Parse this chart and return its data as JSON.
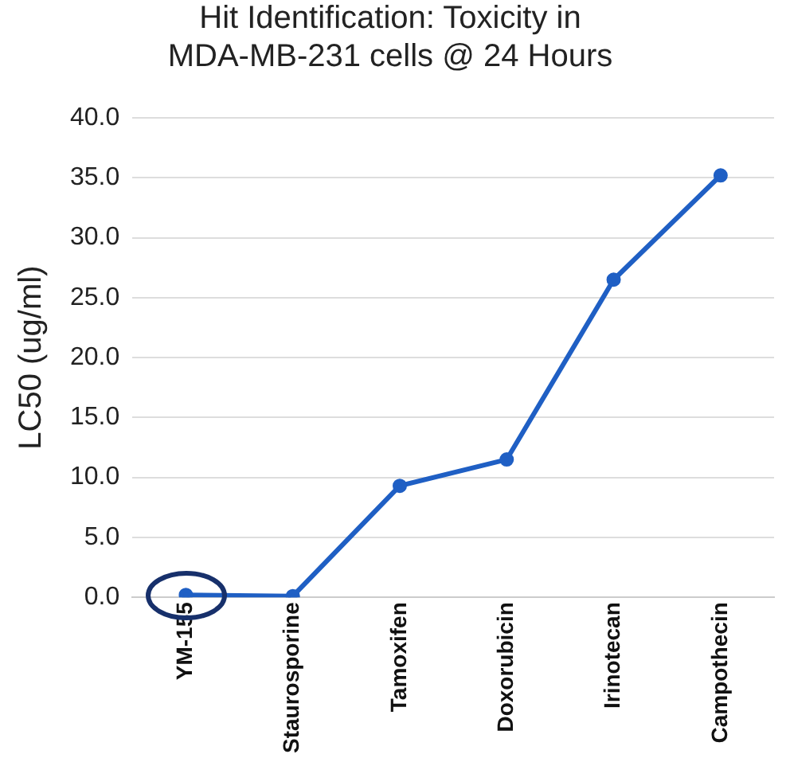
{
  "chart_data": {
    "type": "line",
    "title": "Hit Identification: Toxicity in MDA-MB-231 cells @ 24 Hours",
    "ylabel": "LC50 (ug/ml)",
    "categories": [
      "YM-155",
      "Staurosporine",
      "Tamoxifen",
      "Doxorubicin",
      "Irinotecan",
      "Campothecin"
    ],
    "series": [
      {
        "color": "#1f5fc4",
        "values": [
          0.2,
          0.1,
          9.3,
          11.5,
          26.5,
          35.2
        ]
      }
    ],
    "ylim": [
      0,
      40
    ],
    "yticks": [
      {
        "value": 0,
        "label": "0.0"
      },
      {
        "value": 5,
        "label": "5.0"
      },
      {
        "value": 10,
        "label": "10.0"
      },
      {
        "value": 15,
        "label": "15.0"
      },
      {
        "value": 20,
        "label": "20.0"
      },
      {
        "value": 25,
        "label": "25.0"
      },
      {
        "value": 30,
        "label": "30.0"
      },
      {
        "value": 35,
        "label": "35.0"
      },
      {
        "value": 40,
        "label": "40.0"
      }
    ],
    "grid": "y",
    "marker": "circle",
    "line_style": "solid",
    "legend": false
  }
}
